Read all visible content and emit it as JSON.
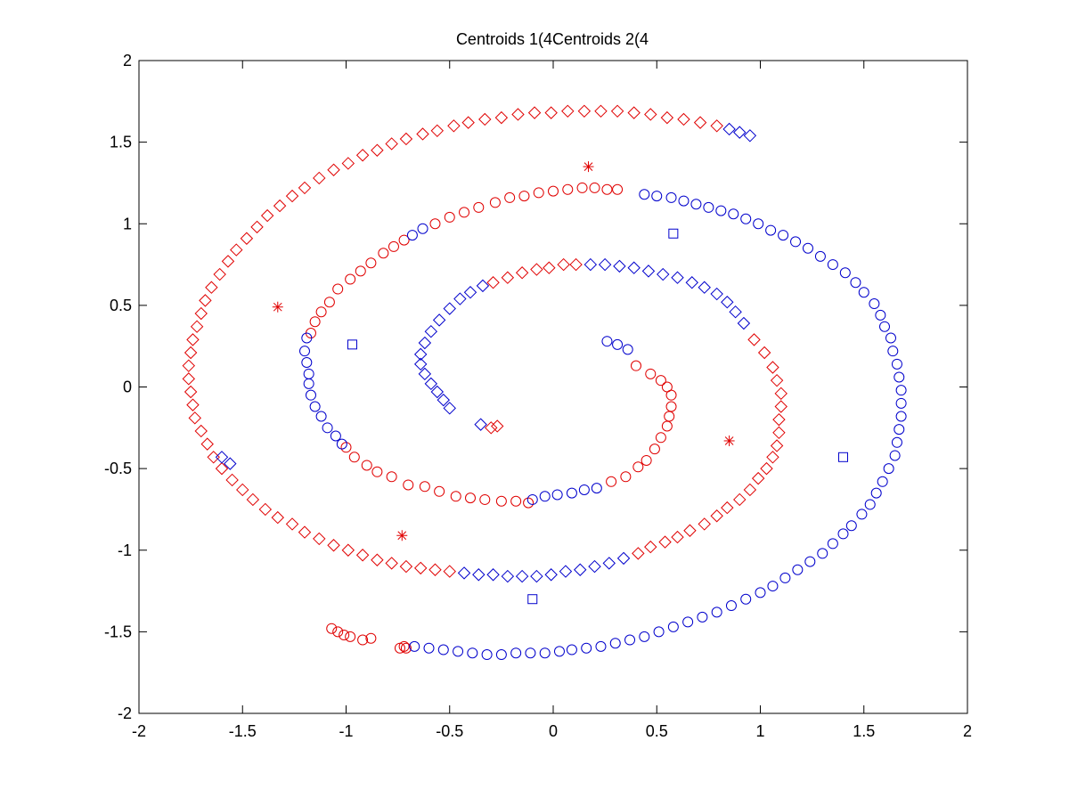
{
  "chart_data": {
    "type": "scatter",
    "title": "Centroids 1(4Centroids 2(4",
    "xlabel": "",
    "ylabel": "",
    "xlim": [
      -2,
      2
    ],
    "ylim": [
      -2,
      2
    ],
    "xticks": [
      "-2",
      "-1.5",
      "-1",
      "-0.5",
      "0",
      "0.5",
      "1",
      "1.5",
      "2"
    ],
    "yticks": [
      "2",
      "1.5",
      "1",
      "0.5",
      "0",
      "-0.5",
      "-1",
      "-1.5",
      "-2"
    ],
    "xtick_values": [
      -2,
      -1.5,
      -1,
      -0.5,
      0,
      0.5,
      1,
      1.5,
      2
    ],
    "ytick_values": [
      2,
      1.5,
      1,
      0.5,
      0,
      -0.5,
      -1,
      -1.5,
      -2
    ],
    "grid": false,
    "legend": "none",
    "colors": {
      "red": "#e00000",
      "blue": "#0000cc"
    },
    "series": [
      {
        "marker": "circle",
        "color": "#e00000",
        "points": [
          [
            0.4,
            0.13
          ],
          [
            0.47,
            0.08
          ],
          [
            0.52,
            0.04
          ],
          [
            0.55,
            0.0
          ],
          [
            0.57,
            -0.05
          ],
          [
            0.57,
            -0.12
          ],
          [
            0.56,
            -0.18
          ],
          [
            0.55,
            -0.24
          ],
          [
            0.52,
            -0.31
          ],
          [
            0.49,
            -0.38
          ],
          [
            0.45,
            -0.45
          ],
          [
            0.41,
            -0.49
          ],
          [
            0.35,
            -0.55
          ],
          [
            0.28,
            -0.58
          ],
          [
            -0.12,
            -0.71
          ],
          [
            -0.18,
            -0.7
          ],
          [
            -0.25,
            -0.7
          ],
          [
            -0.33,
            -0.69
          ],
          [
            -0.4,
            -0.68
          ],
          [
            -0.47,
            -0.67
          ],
          [
            -0.55,
            -0.64
          ],
          [
            -0.62,
            -0.61
          ],
          [
            -0.7,
            -0.6
          ],
          [
            -0.78,
            -0.55
          ],
          [
            -0.85,
            -0.52
          ],
          [
            -0.9,
            -0.48
          ],
          [
            -0.96,
            -0.43
          ],
          [
            -1.0,
            -0.37
          ],
          [
            -1.17,
            0.33
          ],
          [
            -1.15,
            0.4
          ],
          [
            -1.12,
            0.46
          ],
          [
            -1.08,
            0.52
          ],
          [
            -1.04,
            0.6
          ],
          [
            -0.98,
            0.66
          ],
          [
            -0.93,
            0.71
          ],
          [
            -0.88,
            0.76
          ],
          [
            -0.82,
            0.82
          ],
          [
            -0.77,
            0.86
          ],
          [
            -0.72,
            0.9
          ],
          [
            -0.57,
            1.0
          ],
          [
            -0.5,
            1.04
          ],
          [
            -0.43,
            1.07
          ],
          [
            -0.36,
            1.1
          ],
          [
            -0.28,
            1.13
          ],
          [
            -0.21,
            1.16
          ],
          [
            -0.14,
            1.17
          ],
          [
            -0.07,
            1.19
          ],
          [
            0.0,
            1.2
          ],
          [
            0.07,
            1.21
          ],
          [
            0.14,
            1.22
          ],
          [
            0.2,
            1.22
          ],
          [
            0.26,
            1.21
          ],
          [
            0.31,
            1.21
          ],
          [
            -1.07,
            -1.48
          ],
          [
            -1.04,
            -1.5
          ],
          [
            -1.01,
            -1.52
          ],
          [
            -0.98,
            -1.53
          ],
          [
            -0.92,
            -1.55
          ],
          [
            -0.88,
            -1.54
          ],
          [
            -0.72,
            -1.59
          ],
          [
            -0.74,
            -1.6
          ],
          [
            -0.71,
            -1.6
          ]
        ]
      },
      {
        "marker": "circle",
        "color": "#0000cc",
        "points": [
          [
            0.26,
            0.28
          ],
          [
            0.31,
            0.26
          ],
          [
            0.36,
            0.23
          ],
          [
            -0.1,
            -0.69
          ],
          [
            -0.04,
            -0.67
          ],
          [
            0.02,
            -0.66
          ],
          [
            0.09,
            -0.65
          ],
          [
            0.15,
            -0.63
          ],
          [
            0.21,
            -0.62
          ],
          [
            -1.19,
            0.3
          ],
          [
            -1.2,
            0.22
          ],
          [
            -1.19,
            0.15
          ],
          [
            -1.18,
            0.08
          ],
          [
            -1.18,
            0.02
          ],
          [
            -1.17,
            -0.05
          ],
          [
            -1.15,
            -0.12
          ],
          [
            -1.12,
            -0.18
          ],
          [
            -1.09,
            -0.25
          ],
          [
            -1.05,
            -0.3
          ],
          [
            -1.02,
            -0.35
          ],
          [
            -0.68,
            0.93
          ],
          [
            -0.63,
            0.97
          ],
          [
            0.44,
            1.18
          ],
          [
            0.5,
            1.17
          ],
          [
            0.57,
            1.16
          ],
          [
            0.63,
            1.14
          ],
          [
            0.69,
            1.12
          ],
          [
            0.75,
            1.1
          ],
          [
            0.81,
            1.08
          ],
          [
            0.87,
            1.06
          ],
          [
            0.93,
            1.03
          ],
          [
            0.99,
            1.0
          ],
          [
            1.05,
            0.96
          ],
          [
            1.11,
            0.93
          ],
          [
            1.17,
            0.89
          ],
          [
            1.23,
            0.85
          ],
          [
            1.29,
            0.8
          ],
          [
            1.35,
            0.75
          ],
          [
            1.41,
            0.7
          ],
          [
            1.46,
            0.64
          ],
          [
            1.5,
            0.58
          ],
          [
            1.55,
            0.51
          ],
          [
            1.58,
            0.44
          ],
          [
            1.6,
            0.37
          ],
          [
            1.63,
            0.3
          ],
          [
            1.64,
            0.22
          ],
          [
            1.66,
            0.14
          ],
          [
            1.67,
            0.06
          ],
          [
            1.68,
            -0.02
          ],
          [
            1.68,
            -0.1
          ],
          [
            1.68,
            -0.18
          ],
          [
            1.67,
            -0.26
          ],
          [
            1.66,
            -0.34
          ],
          [
            1.65,
            -0.42
          ],
          [
            1.62,
            -0.5
          ],
          [
            1.59,
            -0.58
          ],
          [
            1.56,
            -0.65
          ],
          [
            1.53,
            -0.72
          ],
          [
            1.49,
            -0.78
          ],
          [
            1.44,
            -0.85
          ],
          [
            1.4,
            -0.9
          ],
          [
            1.35,
            -0.96
          ],
          [
            1.3,
            -1.02
          ],
          [
            1.24,
            -1.07
          ],
          [
            1.18,
            -1.12
          ],
          [
            1.12,
            -1.17
          ],
          [
            1.06,
            -1.22
          ],
          [
            1.0,
            -1.26
          ],
          [
            0.93,
            -1.3
          ],
          [
            0.86,
            -1.34
          ],
          [
            0.79,
            -1.38
          ],
          [
            0.72,
            -1.41
          ],
          [
            0.65,
            -1.44
          ],
          [
            0.58,
            -1.47
          ],
          [
            0.51,
            -1.5
          ],
          [
            0.44,
            -1.53
          ],
          [
            0.37,
            -1.55
          ],
          [
            0.3,
            -1.57
          ],
          [
            0.23,
            -1.59
          ],
          [
            0.16,
            -1.6
          ],
          [
            0.09,
            -1.61
          ],
          [
            0.03,
            -1.62
          ],
          [
            -0.04,
            -1.63
          ],
          [
            -0.11,
            -1.63
          ],
          [
            -0.18,
            -1.63
          ],
          [
            -0.25,
            -1.64
          ],
          [
            -0.32,
            -1.64
          ],
          [
            -0.39,
            -1.63
          ],
          [
            -0.46,
            -1.62
          ],
          [
            -0.53,
            -1.61
          ],
          [
            -0.6,
            -1.6
          ],
          [
            -0.67,
            -1.59
          ]
        ]
      },
      {
        "marker": "diamond",
        "color": "#e00000",
        "points": [
          [
            -0.29,
            0.64
          ],
          [
            -0.22,
            0.67
          ],
          [
            -0.15,
            0.7
          ],
          [
            -0.08,
            0.72
          ],
          [
            -0.02,
            0.73
          ],
          [
            0.05,
            0.75
          ],
          [
            0.11,
            0.75
          ],
          [
            0.97,
            0.29
          ],
          [
            1.02,
            0.21
          ],
          [
            1.06,
            0.12
          ],
          [
            1.08,
            0.04
          ],
          [
            1.1,
            -0.04
          ],
          [
            1.1,
            -0.12
          ],
          [
            1.09,
            -0.2
          ],
          [
            1.09,
            -0.28
          ],
          [
            1.08,
            -0.36
          ],
          [
            1.06,
            -0.43
          ],
          [
            1.03,
            -0.5
          ],
          [
            0.99,
            -0.56
          ],
          [
            0.95,
            -0.63
          ],
          [
            0.9,
            -0.69
          ],
          [
            0.84,
            -0.74
          ],
          [
            0.79,
            -0.79
          ],
          [
            0.73,
            -0.84
          ],
          [
            0.66,
            -0.88
          ],
          [
            0.6,
            -0.92
          ],
          [
            0.54,
            -0.95
          ],
          [
            0.47,
            -0.98
          ],
          [
            0.41,
            -1.02
          ],
          [
            -0.27,
            -0.24
          ],
          [
            -0.3,
            -0.25
          ],
          [
            -0.5,
            -1.13
          ],
          [
            -0.57,
            -1.12
          ],
          [
            -0.64,
            -1.11
          ],
          [
            -0.71,
            -1.1
          ],
          [
            -0.78,
            -1.08
          ],
          [
            -0.85,
            -1.06
          ],
          [
            -0.92,
            -1.03
          ],
          [
            -0.99,
            -1.0
          ],
          [
            -1.06,
            -0.97
          ],
          [
            -1.13,
            -0.93
          ],
          [
            -1.2,
            -0.89
          ],
          [
            -1.26,
            -0.84
          ],
          [
            -1.33,
            -0.8
          ],
          [
            -1.39,
            -0.75
          ],
          [
            -1.45,
            -0.69
          ],
          [
            -1.5,
            -0.63
          ],
          [
            -1.55,
            -0.57
          ],
          [
            -1.6,
            -0.5
          ],
          [
            -1.64,
            -0.43
          ],
          [
            -1.67,
            -0.35
          ],
          [
            -1.7,
            -0.27
          ],
          [
            -1.73,
            -0.19
          ],
          [
            -1.74,
            -0.11
          ],
          [
            -1.75,
            -0.03
          ],
          [
            -1.76,
            0.05
          ],
          [
            -1.76,
            0.13
          ],
          [
            -1.75,
            0.21
          ],
          [
            -1.74,
            0.29
          ],
          [
            -1.72,
            0.37
          ],
          [
            -1.7,
            0.45
          ],
          [
            -1.68,
            0.53
          ],
          [
            -1.65,
            0.61
          ],
          [
            -1.61,
            0.69
          ],
          [
            -1.57,
            0.77
          ],
          [
            -1.53,
            0.84
          ],
          [
            -1.48,
            0.91
          ],
          [
            -1.43,
            0.98
          ],
          [
            -1.38,
            1.05
          ],
          [
            -1.32,
            1.11
          ],
          [
            -1.26,
            1.17
          ],
          [
            -1.2,
            1.22
          ],
          [
            -1.13,
            1.28
          ],
          [
            -1.06,
            1.33
          ],
          [
            -0.99,
            1.37
          ],
          [
            -0.92,
            1.42
          ],
          [
            -0.85,
            1.45
          ],
          [
            -0.78,
            1.49
          ],
          [
            -0.71,
            1.52
          ],
          [
            -0.63,
            1.55
          ],
          [
            -0.56,
            1.57
          ],
          [
            -0.48,
            1.6
          ],
          [
            -0.41,
            1.62
          ],
          [
            -0.33,
            1.64
          ],
          [
            -0.25,
            1.65
          ],
          [
            -0.17,
            1.67
          ],
          [
            -0.09,
            1.68
          ],
          [
            -0.01,
            1.68
          ],
          [
            0.07,
            1.69
          ],
          [
            0.15,
            1.69
          ],
          [
            0.23,
            1.69
          ],
          [
            0.31,
            1.69
          ],
          [
            0.39,
            1.68
          ],
          [
            0.47,
            1.67
          ],
          [
            0.55,
            1.65
          ],
          [
            0.63,
            1.64
          ],
          [
            0.71,
            1.62
          ],
          [
            0.79,
            1.6
          ]
        ]
      },
      {
        "marker": "diamond",
        "color": "#0000cc",
        "points": [
          [
            -0.5,
            -0.13
          ],
          [
            -0.53,
            -0.08
          ],
          [
            -0.56,
            -0.03
          ],
          [
            -0.59,
            0.02
          ],
          [
            -0.62,
            0.08
          ],
          [
            -0.64,
            0.14
          ],
          [
            -0.64,
            0.2
          ],
          [
            -0.62,
            0.27
          ],
          [
            -0.59,
            0.34
          ],
          [
            -0.55,
            0.41
          ],
          [
            -0.5,
            0.48
          ],
          [
            -0.45,
            0.54
          ],
          [
            -0.4,
            0.58
          ],
          [
            -0.34,
            0.62
          ],
          [
            0.18,
            0.75
          ],
          [
            0.25,
            0.75
          ],
          [
            0.32,
            0.74
          ],
          [
            0.39,
            0.73
          ],
          [
            0.46,
            0.71
          ],
          [
            0.53,
            0.69
          ],
          [
            0.6,
            0.67
          ],
          [
            0.67,
            0.64
          ],
          [
            0.73,
            0.61
          ],
          [
            0.79,
            0.57
          ],
          [
            0.84,
            0.52
          ],
          [
            0.88,
            0.46
          ],
          [
            0.92,
            0.39
          ],
          [
            -0.35,
            -0.23
          ],
          [
            0.34,
            -1.05
          ],
          [
            0.27,
            -1.08
          ],
          [
            0.2,
            -1.1
          ],
          [
            0.13,
            -1.12
          ],
          [
            0.06,
            -1.13
          ],
          [
            -0.01,
            -1.15
          ],
          [
            -0.08,
            -1.16
          ],
          [
            -0.15,
            -1.16
          ],
          [
            -0.22,
            -1.16
          ],
          [
            -0.29,
            -1.15
          ],
          [
            -0.36,
            -1.15
          ],
          [
            -0.43,
            -1.14
          ],
          [
            -1.6,
            -0.43
          ],
          [
            -1.56,
            -0.47
          ],
          [
            0.85,
            1.58
          ],
          [
            0.9,
            1.56
          ],
          [
            0.95,
            1.54
          ]
        ]
      },
      {
        "marker": "star",
        "color": "#e00000",
        "points": [
          [
            0.17,
            1.35
          ],
          [
            -1.33,
            0.49
          ],
          [
            0.85,
            -0.33
          ],
          [
            -0.73,
            -0.91
          ]
        ]
      },
      {
        "marker": "square",
        "color": "#0000cc",
        "points": [
          [
            0.58,
            0.94
          ],
          [
            -0.97,
            0.26
          ],
          [
            1.4,
            -0.43
          ],
          [
            -0.1,
            -1.3
          ]
        ]
      }
    ]
  }
}
